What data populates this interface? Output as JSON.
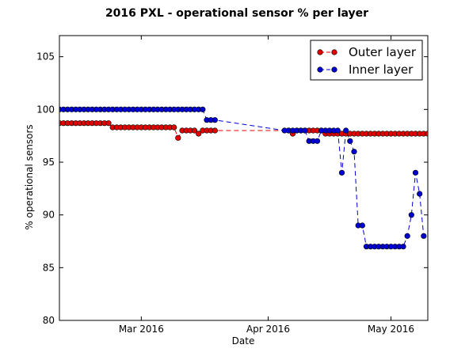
{
  "chart_data": {
    "type": "line",
    "title": "2016 PXL - operational sensor % per layer",
    "xlabel": "Date",
    "ylabel": "% operational sensors",
    "ylim": [
      80,
      107
    ],
    "xlim": [
      "2016-02-10",
      "2016-05-10"
    ],
    "x_ticks": [
      {
        "date": "2016-03-01",
        "label": "Mar 2016"
      },
      {
        "date": "2016-04-01",
        "label": "Apr 2016"
      },
      {
        "date": "2016-05-01",
        "label": "May 2016"
      }
    ],
    "y_ticks": [
      80,
      85,
      90,
      95,
      100,
      105
    ],
    "grid": false,
    "legend_position": "top-right",
    "series": [
      {
        "name": "Outer layer",
        "color": "#e30000",
        "marker": "circle",
        "line_style": "dashed",
        "points": [
          [
            "2016-02-10",
            98.7
          ],
          [
            "2016-02-11",
            98.7
          ],
          [
            "2016-02-12",
            98.7
          ],
          [
            "2016-02-13",
            98.7
          ],
          [
            "2016-02-14",
            98.7
          ],
          [
            "2016-02-15",
            98.7
          ],
          [
            "2016-02-16",
            98.7
          ],
          [
            "2016-02-17",
            98.7
          ],
          [
            "2016-02-18",
            98.7
          ],
          [
            "2016-02-19",
            98.7
          ],
          [
            "2016-02-20",
            98.7
          ],
          [
            "2016-02-21",
            98.7
          ],
          [
            "2016-02-22",
            98.7
          ],
          [
            "2016-02-23",
            98.3
          ],
          [
            "2016-02-24",
            98.3
          ],
          [
            "2016-02-25",
            98.3
          ],
          [
            "2016-02-26",
            98.3
          ],
          [
            "2016-02-27",
            98.3
          ],
          [
            "2016-02-28",
            98.3
          ],
          [
            "2016-02-29",
            98.3
          ],
          [
            "2016-03-01",
            98.3
          ],
          [
            "2016-03-02",
            98.3
          ],
          [
            "2016-03-03",
            98.3
          ],
          [
            "2016-03-04",
            98.3
          ],
          [
            "2016-03-05",
            98.3
          ],
          [
            "2016-03-06",
            98.3
          ],
          [
            "2016-03-07",
            98.3
          ],
          [
            "2016-03-08",
            98.3
          ],
          [
            "2016-03-09",
            98.3
          ],
          [
            "2016-03-10",
            97.3
          ],
          [
            "2016-03-11",
            98.0
          ],
          [
            "2016-03-12",
            98.0
          ],
          [
            "2016-03-13",
            98.0
          ],
          [
            "2016-03-14",
            98.0
          ],
          [
            "2016-03-15",
            97.7
          ],
          [
            "2016-03-16",
            98.0
          ],
          [
            "2016-03-17",
            98.0
          ],
          [
            "2016-03-18",
            98.0
          ],
          [
            "2016-03-19",
            98.0
          ],
          [
            "2016-04-06",
            98.0
          ],
          [
            "2016-04-07",
            97.7
          ],
          [
            "2016-04-08",
            98.0
          ],
          [
            "2016-04-09",
            98.0
          ],
          [
            "2016-04-10",
            98.0
          ],
          [
            "2016-04-11",
            98.0
          ],
          [
            "2016-04-12",
            98.0
          ],
          [
            "2016-04-13",
            98.0
          ],
          [
            "2016-04-14",
            98.0
          ],
          [
            "2016-04-15",
            97.7
          ],
          [
            "2016-04-16",
            97.7
          ],
          [
            "2016-04-17",
            97.7
          ],
          [
            "2016-04-18",
            97.7
          ],
          [
            "2016-04-19",
            97.7
          ],
          [
            "2016-04-20",
            97.7
          ],
          [
            "2016-04-21",
            97.7
          ],
          [
            "2016-04-22",
            97.7
          ],
          [
            "2016-04-23",
            97.7
          ],
          [
            "2016-04-24",
            97.7
          ],
          [
            "2016-04-25",
            97.7
          ],
          [
            "2016-04-26",
            97.7
          ],
          [
            "2016-04-27",
            97.7
          ],
          [
            "2016-04-28",
            97.7
          ],
          [
            "2016-04-29",
            97.7
          ],
          [
            "2016-04-30",
            97.7
          ],
          [
            "2016-05-01",
            97.7
          ],
          [
            "2016-05-02",
            97.7
          ],
          [
            "2016-05-03",
            97.7
          ],
          [
            "2016-05-04",
            97.7
          ],
          [
            "2016-05-05",
            97.7
          ],
          [
            "2016-05-06",
            97.7
          ],
          [
            "2016-05-07",
            97.7
          ],
          [
            "2016-05-08",
            97.7
          ],
          [
            "2016-05-09",
            97.7
          ],
          [
            "2016-05-10",
            97.7
          ]
        ]
      },
      {
        "name": "Inner layer",
        "color": "#0000d4",
        "marker": "circle",
        "line_style": "dashed",
        "points": [
          [
            "2016-02-10",
            100
          ],
          [
            "2016-02-11",
            100
          ],
          [
            "2016-02-12",
            100
          ],
          [
            "2016-02-13",
            100
          ],
          [
            "2016-02-14",
            100
          ],
          [
            "2016-02-15",
            100
          ],
          [
            "2016-02-16",
            100
          ],
          [
            "2016-02-17",
            100
          ],
          [
            "2016-02-18",
            100
          ],
          [
            "2016-02-19",
            100
          ],
          [
            "2016-02-20",
            100
          ],
          [
            "2016-02-21",
            100
          ],
          [
            "2016-02-22",
            100
          ],
          [
            "2016-02-23",
            100
          ],
          [
            "2016-02-24",
            100
          ],
          [
            "2016-02-25",
            100
          ],
          [
            "2016-02-26",
            100
          ],
          [
            "2016-02-27",
            100
          ],
          [
            "2016-02-28",
            100
          ],
          [
            "2016-02-29",
            100
          ],
          [
            "2016-03-01",
            100
          ],
          [
            "2016-03-02",
            100
          ],
          [
            "2016-03-03",
            100
          ],
          [
            "2016-03-04",
            100
          ],
          [
            "2016-03-05",
            100
          ],
          [
            "2016-03-06",
            100
          ],
          [
            "2016-03-07",
            100
          ],
          [
            "2016-03-08",
            100
          ],
          [
            "2016-03-09",
            100
          ],
          [
            "2016-03-10",
            100
          ],
          [
            "2016-03-11",
            100
          ],
          [
            "2016-03-12",
            100
          ],
          [
            "2016-03-13",
            100
          ],
          [
            "2016-03-14",
            100
          ],
          [
            "2016-03-15",
            100
          ],
          [
            "2016-03-16",
            100
          ],
          [
            "2016-03-17",
            99.0
          ],
          [
            "2016-03-18",
            99.0
          ],
          [
            "2016-03-19",
            99.0
          ],
          [
            "2016-04-05",
            98.0
          ],
          [
            "2016-04-06",
            98.0
          ],
          [
            "2016-04-07",
            98.0
          ],
          [
            "2016-04-08",
            98.0
          ],
          [
            "2016-04-09",
            98.0
          ],
          [
            "2016-04-10",
            98.0
          ],
          [
            "2016-04-11",
            97.0
          ],
          [
            "2016-04-12",
            97.0
          ],
          [
            "2016-04-13",
            97.0
          ],
          [
            "2016-04-14",
            98.0
          ],
          [
            "2016-04-15",
            98.0
          ],
          [
            "2016-04-16",
            98.0
          ],
          [
            "2016-04-17",
            98.0
          ],
          [
            "2016-04-18",
            98.0
          ],
          [
            "2016-04-19",
            94.0
          ],
          [
            "2016-04-20",
            98.0
          ],
          [
            "2016-04-21",
            97.0
          ],
          [
            "2016-04-22",
            96.0
          ],
          [
            "2016-04-23",
            89.0
          ],
          [
            "2016-04-24",
            89.0
          ],
          [
            "2016-04-25",
            87.0
          ],
          [
            "2016-04-26",
            87.0
          ],
          [
            "2016-04-27",
            87.0
          ],
          [
            "2016-04-28",
            87.0
          ],
          [
            "2016-04-29",
            87.0
          ],
          [
            "2016-04-30",
            87.0
          ],
          [
            "2016-05-01",
            87.0
          ],
          [
            "2016-05-02",
            87.0
          ],
          [
            "2016-05-03",
            87.0
          ],
          [
            "2016-05-04",
            87.0
          ],
          [
            "2016-05-05",
            88.0
          ],
          [
            "2016-05-06",
            90.0
          ],
          [
            "2016-05-07",
            94.0
          ],
          [
            "2016-05-08",
            92.0
          ],
          [
            "2016-05-09",
            88.0
          ]
        ]
      }
    ]
  }
}
